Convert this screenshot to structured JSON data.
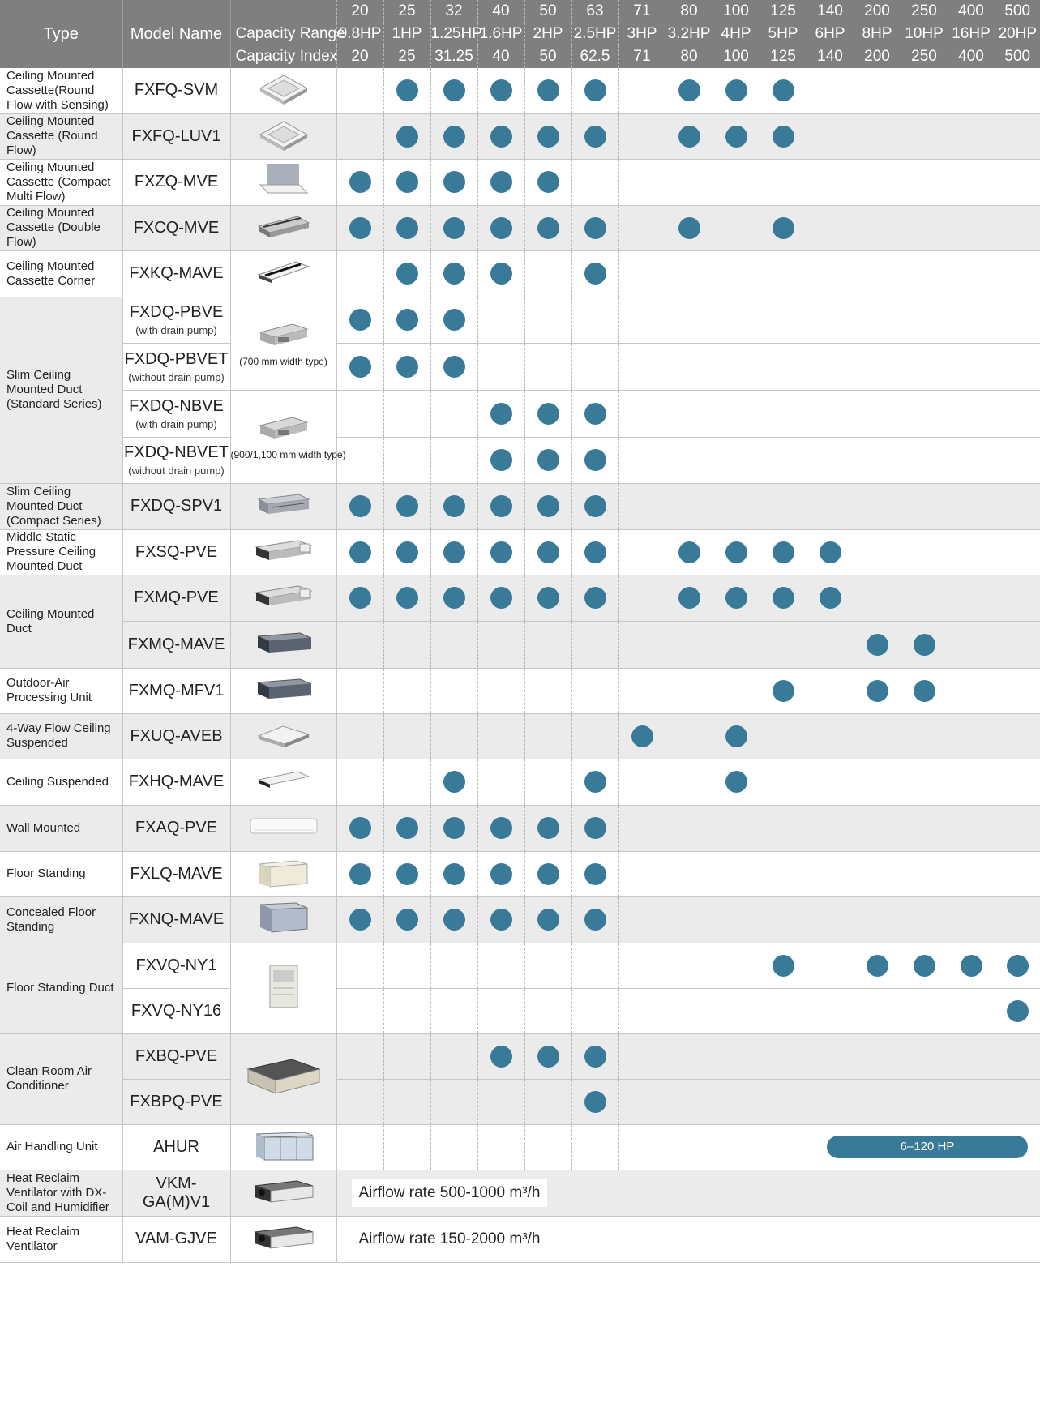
{
  "header": {
    "type_label": "Type",
    "model_label": "Model Name",
    "capacity_range_label": "Capacity Range",
    "capacity_index_label": "Capacity Index",
    "codes": [
      "20",
      "25",
      "32",
      "40",
      "50",
      "63",
      "71",
      "80",
      "100",
      "125",
      "140",
      "200",
      "250",
      "400",
      "500"
    ],
    "hp": [
      "0.8HP",
      "1HP",
      "1.25HP",
      "1.6HP",
      "2HP",
      "2.5HP",
      "3HP",
      "3.2HP",
      "4HP",
      "5HP",
      "6HP",
      "8HP",
      "10HP",
      "16HP",
      "20HP"
    ],
    "index": [
      "20",
      "25",
      "31.25",
      "40",
      "50",
      "62.5",
      "71",
      "80",
      "100",
      "125",
      "140",
      "200",
      "250",
      "400",
      "500"
    ]
  },
  "rows": [
    {
      "type": "Ceiling Mounted Cassette(Round Flow with Sensing)",
      "model": "FXFQ-SVM",
      "sub": "",
      "icon": "cassette-round-icon",
      "caps": [
        25,
        32,
        40,
        50,
        63,
        80,
        100,
        125
      ]
    },
    {
      "type": "Ceiling Mounted Cassette (Round Flow)",
      "model": "FXFQ-LUV1",
      "sub": "",
      "icon": "cassette-round-icon",
      "caps": [
        25,
        32,
        40,
        50,
        63,
        80,
        100,
        125
      ]
    },
    {
      "type": "Ceiling Mounted Cassette (Compact Multi Flow)",
      "model": "FXZQ-MVE",
      "sub": "",
      "icon": "cassette-compact-icon",
      "caps": [
        20,
        25,
        32,
        40,
        50
      ]
    },
    {
      "type": "Ceiling Mounted Cassette (Double Flow)",
      "model": "FXCQ-MVE",
      "sub": "",
      "icon": "cassette-double-icon",
      "caps": [
        20,
        25,
        32,
        40,
        50,
        63,
        80,
        125
      ]
    },
    {
      "type": "Ceiling Mounted Cassette Corner",
      "model": "FXKQ-MAVE",
      "sub": "",
      "icon": "cassette-corner-icon",
      "caps": [
        25,
        32,
        40,
        63
      ]
    },
    {
      "type": "Slim Ceiling Mounted Duct (Standard Series)",
      "model": "FXDQ-PBVE",
      "sub": "(with drain pump)",
      "icon": "duct-slim-icon",
      "note": "(700 mm width type)",
      "caps": [
        20,
        25,
        32
      ]
    },
    {
      "type": "",
      "model": "FXDQ-PBVET",
      "sub": "(without drain pump)",
      "icon": "",
      "caps": [
        20,
        25,
        32
      ]
    },
    {
      "type": "",
      "model": "FXDQ-NBVE",
      "sub": "(with drain pump)",
      "icon": "duct-slim-icon",
      "note": "(900/1,100 mm width type)",
      "caps": [
        40,
        50,
        63
      ]
    },
    {
      "type": "",
      "model": "FXDQ-NBVET",
      "sub": "(without drain pump)",
      "icon": "",
      "caps": [
        40,
        50,
        63
      ]
    },
    {
      "type": "Slim Ceiling Mounted Duct (Compact Series)",
      "model": "FXDQ-SPV1",
      "sub": "",
      "icon": "duct-compact-icon",
      "caps": [
        20,
        25,
        32,
        40,
        50,
        63
      ]
    },
    {
      "type": "Middle Static Pressure Ceiling Mounted Duct",
      "model": "FXSQ-PVE",
      "sub": "",
      "icon": "duct-middle-icon",
      "caps": [
        20,
        25,
        32,
        40,
        50,
        63,
        80,
        100,
        125,
        140
      ]
    },
    {
      "type": "Ceiling Mounted Duct",
      "model": "FXMQ-PVE",
      "sub": "",
      "icon": "duct-middle-icon",
      "caps": [
        20,
        25,
        32,
        40,
        50,
        63,
        80,
        100,
        125,
        140
      ]
    },
    {
      "type": "",
      "model": "FXMQ-MAVE",
      "sub": "",
      "icon": "duct-large-icon",
      "caps": [
        200,
        250
      ]
    },
    {
      "type": "Outdoor-Air Processing Unit",
      "model": "FXMQ-MFV1",
      "sub": "",
      "icon": "duct-large-icon",
      "caps": [
        125,
        200,
        250
      ]
    },
    {
      "type": "4-Way Flow Ceiling Suspended",
      "model": "FXUQ-AVEB",
      "sub": "",
      "icon": "suspended-4way-icon",
      "caps": [
        71,
        100
      ]
    },
    {
      "type": "Ceiling Suspended",
      "model": "FXHQ-MAVE",
      "sub": "",
      "icon": "suspended-icon",
      "caps": [
        32,
        63,
        100
      ]
    },
    {
      "type": "Wall Mounted",
      "model": "FXAQ-PVE",
      "sub": "",
      "icon": "wall-unit-icon",
      "caps": [
        20,
        25,
        32,
        40,
        50,
        63
      ]
    },
    {
      "type": "Floor Standing",
      "model": "FXLQ-MAVE",
      "sub": "",
      "icon": "floor-unit-icon",
      "caps": [
        20,
        25,
        32,
        40,
        50,
        63
      ]
    },
    {
      "type": "Concealed Floor Standing",
      "model": "FXNQ-MAVE",
      "sub": "",
      "icon": "concealed-floor-icon",
      "caps": [
        20,
        25,
        32,
        40,
        50,
        63
      ]
    },
    {
      "type": "Floor Standing Duct",
      "model": "FXVQ-NY1",
      "sub": "",
      "icon": "floor-duct-icon",
      "caps": [
        125,
        200,
        250,
        400,
        500
      ]
    },
    {
      "type": "",
      "model": "FXVQ-NY16",
      "sub": "",
      "icon": "",
      "caps": [
        500
      ]
    },
    {
      "type": "Clean Room Air Conditioner",
      "model": "FXBQ-PVE",
      "sub": "",
      "icon": "clean-room-icon",
      "caps": [
        40,
        50,
        63
      ]
    },
    {
      "type": "",
      "model": "FXBPQ-PVE",
      "sub": "",
      "icon": "",
      "caps": [
        63
      ]
    },
    {
      "type": "Air Handling Unit",
      "model": "AHUR",
      "sub": "",
      "icon": "ahu-icon",
      "range": "6–120 HP",
      "caps": []
    },
    {
      "type": "Heat Reclaim Ventilator with DX-Coil and Humidifier",
      "model": "VKM-GA(M)V1",
      "sub": "",
      "icon": "ventilator-icon",
      "airflow": "Airflow rate 500-1000 m³/h",
      "caps": []
    },
    {
      "type": "Heat Reclaim Ventilator",
      "model": "VAM-GJVE",
      "sub": "",
      "icon": "ventilator-icon",
      "airflow": "Airflow rate 150-2000 m³/h",
      "caps": []
    }
  ],
  "colors": {
    "dot": "#3a7a99",
    "header": "#7f7f7f",
    "alt_row": "#ebebeb"
  }
}
